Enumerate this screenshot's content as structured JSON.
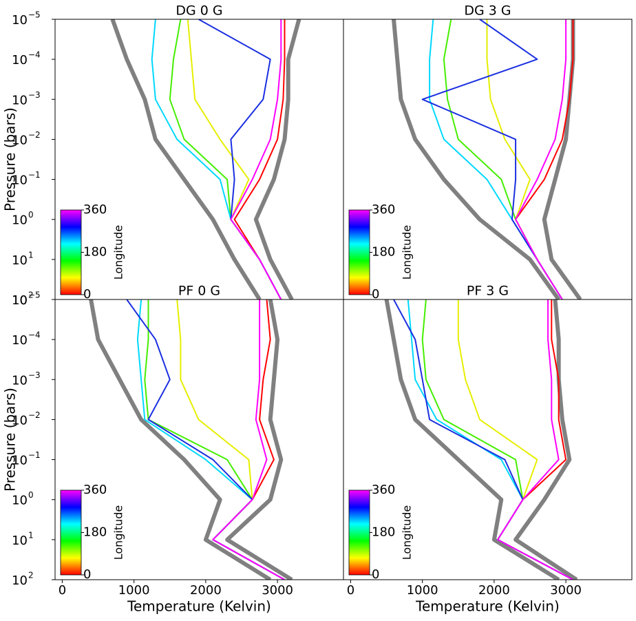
{
  "chart_data": [
    {
      "type": "line",
      "title": "DG 0 G",
      "ylabel": "Pressure (bars)",
      "xlim": [
        -100,
        3920
      ],
      "ylim": [
        1e-05,
        100
      ],
      "y_log": true,
      "y_inverted": true,
      "yticks": [
        {
          "value": 1e-05,
          "label": "10",
          "exponent": "−5"
        },
        {
          "value": 0.0001,
          "label": "10",
          "exponent": "−4"
        },
        {
          "value": 0.001,
          "label": "10",
          "exponent": "−3"
        },
        {
          "value": 0.01,
          "label": "10",
          "exponent": "−2"
        },
        {
          "value": 0.1,
          "label": "10",
          "exponent": "−1"
        },
        {
          "value": 1,
          "label": "10",
          "exponent": "0"
        },
        {
          "value": 10,
          "label": "10",
          "exponent": "1"
        },
        {
          "value": 100,
          "label": "10",
          "exponent": "2"
        }
      ],
      "colorbar": {
        "label": "Longitude",
        "lim": [
          0,
          360
        ],
        "ticks": [
          0,
          180,
          360
        ],
        "colors": [
          "#ff0000",
          "#ffff00",
          "#00ff00",
          "#00ffff",
          "#0000ff",
          "#ff00ff"
        ]
      },
      "series": [
        {
          "color": "#808080",
          "x": [
            700,
            900,
            1150,
            1300,
            1700,
            2100,
            2400,
            2750
          ],
          "values": [
            1e-05,
            0.0001,
            0.001,
            0.01,
            0.1,
            1,
            10,
            100
          ]
        },
        {
          "color": "#808080",
          "x": [
            3300,
            3150,
            3150,
            3100,
            2950,
            2700,
            2900,
            3200
          ],
          "values": [
            1e-05,
            0.0001,
            0.001,
            0.01,
            0.1,
            1,
            10,
            100
          ]
        },
        {
          "color": "#ff0000",
          "x": [
            3100,
            3100,
            3080,
            3000,
            2750,
            2400,
            2750,
            3050
          ],
          "values": [
            1e-05,
            0.0001,
            0.001,
            0.01,
            0.1,
            1,
            10,
            100
          ]
        },
        {
          "color": "#e6ee00",
          "x": [
            1750,
            1800,
            1850,
            2200,
            2600,
            2350,
            2750,
            3050
          ],
          "values": [
            1e-05,
            0.0001,
            0.001,
            0.01,
            0.1,
            1,
            10,
            100
          ]
        },
        {
          "color": "#44ee00",
          "x": [
            1650,
            1550,
            1500,
            1700,
            2300,
            2350,
            2750,
            3050
          ],
          "values": [
            1e-05,
            0.0001,
            0.001,
            0.01,
            0.1,
            1,
            10,
            100
          ]
        },
        {
          "color": "#00d8ff",
          "x": [
            1300,
            1250,
            1300,
            1600,
            2200,
            2350,
            2750,
            3050
          ],
          "values": [
            1e-05,
            0.0001,
            0.001,
            0.01,
            0.1,
            1,
            10,
            100
          ]
        },
        {
          "color": "#1a2fe0",
          "x": [
            1900,
            2900,
            2800,
            2350,
            2400,
            2350,
            2750,
            3050
          ],
          "values": [
            1e-05,
            0.0001,
            0.001,
            0.01,
            0.1,
            1,
            10,
            100
          ]
        },
        {
          "color": "#ff00ff",
          "x": [
            3050,
            3050,
            3000,
            2900,
            2650,
            2350,
            2750,
            3050
          ],
          "values": [
            1e-05,
            0.0001,
            0.001,
            0.01,
            0.1,
            1,
            10,
            100
          ]
        }
      ]
    },
    {
      "type": "line",
      "title": "DG 3 G",
      "xlim": [
        -100,
        3920
      ],
      "ylim": [
        1e-05,
        100
      ],
      "y_log": true,
      "y_inverted": true,
      "colorbar": {
        "label": "Longitude",
        "lim": [
          0,
          360
        ],
        "ticks": [
          0,
          180,
          360
        ],
        "colors": [
          "#ff0000",
          "#ffff00",
          "#00ff00",
          "#00ffff",
          "#0000ff",
          "#ff00ff"
        ]
      },
      "series": [
        {
          "color": "#808080",
          "x": [
            600,
            650,
            700,
            900,
            1300,
            1800,
            2500,
            2900
          ],
          "values": [
            1e-05,
            0.0001,
            0.001,
            0.01,
            0.1,
            1,
            10,
            100
          ]
        },
        {
          "color": "#808080",
          "x": [
            3100,
            3100,
            3050,
            3000,
            2850,
            2700,
            2800,
            3200
          ],
          "values": [
            1e-05,
            0.0001,
            0.001,
            0.01,
            0.1,
            1,
            10,
            100
          ]
        },
        {
          "color": "#ff0000",
          "x": [
            3100,
            3100,
            3050,
            2950,
            2700,
            2300,
            2600,
            2950
          ],
          "values": [
            1e-05,
            0.0001,
            0.001,
            0.01,
            0.1,
            1,
            10,
            100
          ]
        },
        {
          "color": "#e6ee00",
          "x": [
            1900,
            1900,
            1950,
            2150,
            2500,
            2300,
            2600,
            2950
          ],
          "values": [
            1e-05,
            0.0001,
            0.001,
            0.01,
            0.1,
            1,
            10,
            100
          ]
        },
        {
          "color": "#44ee00",
          "x": [
            1400,
            1300,
            1350,
            1500,
            2100,
            2300,
            2600,
            2950
          ],
          "values": [
            1e-05,
            0.0001,
            0.001,
            0.01,
            0.1,
            1,
            10,
            100
          ]
        },
        {
          "color": "#00d8ff",
          "x": [
            1150,
            1100,
            1100,
            1300,
            1900,
            2250,
            2600,
            2950
          ],
          "values": [
            1e-05,
            0.0001,
            0.001,
            0.01,
            0.1,
            1,
            10,
            100
          ]
        },
        {
          "color": "#1a2fe0",
          "x": [
            1800,
            2600,
            1000,
            2300,
            2300,
            2250,
            2600,
            2950
          ],
          "values": [
            1e-05,
            0.0001,
            0.001,
            0.01,
            0.1,
            1,
            10,
            100
          ]
        },
        {
          "color": "#ff00ff",
          "x": [
            3000,
            3000,
            2950,
            2850,
            2600,
            2300,
            2600,
            2950
          ],
          "values": [
            1e-05,
            0.0001,
            0.001,
            0.01,
            0.1,
            1,
            10,
            100
          ]
        }
      ]
    },
    {
      "type": "line",
      "title": "PF 0 G",
      "ylabel": "Pressure (bars)",
      "xlabel": "Temperature (Kelvin)",
      "xlim": [
        -100,
        3920
      ],
      "xticks": [
        0,
        1000,
        2000,
        3000
      ],
      "ylim": [
        1e-05,
        100
      ],
      "y_log": true,
      "y_inverted": true,
      "yticks": [
        {
          "value": 1e-05,
          "label": "10",
          "exponent": "−5"
        },
        {
          "value": 0.0001,
          "label": "10",
          "exponent": "−4"
        },
        {
          "value": 0.001,
          "label": "10",
          "exponent": "−3"
        },
        {
          "value": 0.01,
          "label": "10",
          "exponent": "−2"
        },
        {
          "value": 0.1,
          "label": "10",
          "exponent": "−1"
        },
        {
          "value": 1,
          "label": "10",
          "exponent": "0"
        },
        {
          "value": 10,
          "label": "10",
          "exponent": "1"
        },
        {
          "value": 100,
          "label": "10",
          "exponent": "2"
        }
      ],
      "colorbar": {
        "label": "Longitude",
        "lim": [
          0,
          360
        ],
        "ticks": [
          0,
          180,
          360
        ],
        "colors": [
          "#ff0000",
          "#ffff00",
          "#00ff00",
          "#00ffff",
          "#0000ff",
          "#ff00ff"
        ]
      },
      "series": [
        {
          "color": "#808080",
          "x": [
            400,
            500,
            800,
            1100,
            1700,
            2200,
            2000,
            2900
          ],
          "values": [
            1e-05,
            0.0001,
            0.001,
            0.01,
            0.1,
            1,
            10,
            100
          ]
        },
        {
          "color": "#808080",
          "x": [
            2900,
            3000,
            2950,
            2900,
            3050,
            2900,
            2300,
            3200
          ],
          "values": [
            1e-05,
            0.0001,
            0.001,
            0.01,
            0.1,
            1,
            10,
            100
          ]
        },
        {
          "color": "#ff0000",
          "x": [
            2850,
            2900,
            2800,
            2750,
            2950,
            2650,
            2100,
            3100
          ],
          "values": [
            1e-05,
            0.0001,
            0.001,
            0.01,
            0.1,
            1,
            10,
            100
          ]
        },
        {
          "color": "#e6ee00",
          "x": [
            1600,
            1650,
            1650,
            1900,
            2600,
            2650,
            2100,
            3100
          ],
          "values": [
            1e-05,
            0.0001,
            0.001,
            0.01,
            0.1,
            1,
            10,
            100
          ]
        },
        {
          "color": "#44ee00",
          "x": [
            1200,
            1200,
            1150,
            1200,
            2300,
            2650,
            2100,
            3100
          ],
          "values": [
            1e-05,
            0.0001,
            0.001,
            0.01,
            0.1,
            1,
            10,
            100
          ]
        },
        {
          "color": "#00d8ff",
          "x": [
            1100,
            1050,
            1100,
            1150,
            2000,
            2650,
            2100,
            3100
          ],
          "values": [
            1e-05,
            0.0001,
            0.001,
            0.01,
            0.1,
            1,
            10,
            100
          ]
        },
        {
          "color": "#1a2fe0",
          "x": [
            900,
            1300,
            1500,
            1200,
            2100,
            2650,
            2100,
            3100
          ],
          "values": [
            1e-05,
            0.0001,
            0.001,
            0.01,
            0.1,
            1,
            10,
            100
          ]
        },
        {
          "color": "#ff00ff",
          "x": [
            2750,
            2750,
            2750,
            2700,
            2850,
            2650,
            2100,
            3100
          ],
          "values": [
            1e-05,
            0.0001,
            0.001,
            0.01,
            0.1,
            1,
            10,
            100
          ]
        }
      ]
    },
    {
      "type": "line",
      "title": "PF 3 G",
      "xlabel": "Temperature (Kelvin)",
      "xlim": [
        -100,
        3920
      ],
      "xticks": [
        0,
        1000,
        2000,
        3000
      ],
      "ylim": [
        1e-05,
        100
      ],
      "y_log": true,
      "y_inverted": true,
      "colorbar": {
        "label": "Longitude",
        "lim": [
          0,
          360
        ],
        "ticks": [
          0,
          180,
          360
        ],
        "colors": [
          "#ff0000",
          "#ffff00",
          "#00ff00",
          "#00ffff",
          "#0000ff",
          "#ff00ff"
        ]
      },
      "series": [
        {
          "color": "#808080",
          "x": [
            500,
            600,
            700,
            900,
            1500,
            2100,
            2000,
            2900
          ],
          "values": [
            1e-05,
            0.0001,
            0.001,
            0.01,
            0.1,
            1,
            10,
            100
          ]
        },
        {
          "color": "#808080",
          "x": [
            2850,
            2900,
            2900,
            2950,
            3050,
            2700,
            2300,
            3150
          ],
          "values": [
            1e-05,
            0.0001,
            0.001,
            0.01,
            0.1,
            1,
            10,
            100
          ]
        },
        {
          "color": "#ff0000",
          "x": [
            2800,
            2800,
            2900,
            2900,
            3000,
            2400,
            2050,
            3100
          ],
          "values": [
            1e-05,
            0.0001,
            0.001,
            0.01,
            0.1,
            1,
            10,
            100
          ]
        },
        {
          "color": "#e6ee00",
          "x": [
            1500,
            1500,
            1600,
            1800,
            2600,
            2400,
            2050,
            3100
          ],
          "values": [
            1e-05,
            0.0001,
            0.001,
            0.01,
            0.1,
            1,
            10,
            100
          ]
        },
        {
          "color": "#44ee00",
          "x": [
            1050,
            1000,
            1050,
            1300,
            2300,
            2400,
            2050,
            3100
          ],
          "values": [
            1e-05,
            0.0001,
            0.001,
            0.01,
            0.1,
            1,
            10,
            100
          ]
        },
        {
          "color": "#00d8ff",
          "x": [
            800,
            850,
            900,
            1200,
            2100,
            2400,
            2050,
            3100
          ],
          "values": [
            1e-05,
            0.0001,
            0.001,
            0.01,
            0.1,
            1,
            10,
            100
          ]
        },
        {
          "color": "#1a2fe0",
          "x": [
            600,
            900,
            1000,
            1100,
            2150,
            2400,
            2050,
            3100
          ],
          "values": [
            1e-05,
            0.0001,
            0.001,
            0.01,
            0.1,
            1,
            10,
            100
          ]
        },
        {
          "color": "#ff00ff",
          "x": [
            2750,
            2750,
            2800,
            2800,
            2900,
            2400,
            2050,
            3100
          ],
          "values": [
            1e-05,
            0.0001,
            0.001,
            0.01,
            0.1,
            1,
            10,
            100
          ]
        }
      ]
    }
  ]
}
